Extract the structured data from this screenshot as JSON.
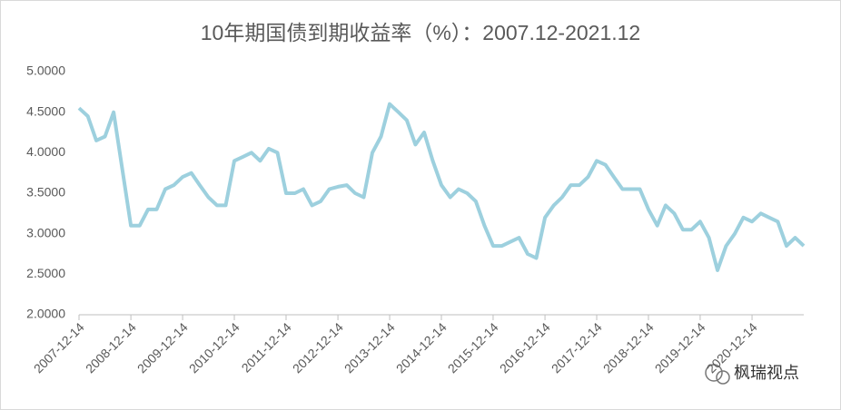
{
  "chart_data": {
    "type": "line",
    "title": "10年期国债到期收益率（%）：2007.12-2021.12",
    "watermark": "枫瑞视点",
    "x": [
      "2007-12-14",
      "2008-02-14",
      "2008-04-14",
      "2008-06-14",
      "2008-08-14",
      "2008-10-14",
      "2008-12-14",
      "2009-02-14",
      "2009-04-14",
      "2009-06-14",
      "2009-08-14",
      "2009-10-14",
      "2009-12-14",
      "2010-02-14",
      "2010-04-14",
      "2010-06-14",
      "2010-08-14",
      "2010-10-14",
      "2010-12-14",
      "2011-02-14",
      "2011-04-14",
      "2011-06-14",
      "2011-08-14",
      "2011-10-14",
      "2011-12-14",
      "2012-02-14",
      "2012-04-14",
      "2012-06-14",
      "2012-08-14",
      "2012-10-14",
      "2012-12-14",
      "2013-02-14",
      "2013-04-14",
      "2013-06-14",
      "2013-08-14",
      "2013-10-14",
      "2013-12-14",
      "2014-02-14",
      "2014-04-14",
      "2014-06-14",
      "2014-08-14",
      "2014-10-14",
      "2014-12-14",
      "2015-02-14",
      "2015-04-14",
      "2015-06-14",
      "2015-08-14",
      "2015-10-14",
      "2015-12-14",
      "2016-02-14",
      "2016-04-14",
      "2016-06-14",
      "2016-08-14",
      "2016-10-14",
      "2016-12-14",
      "2017-02-14",
      "2017-04-14",
      "2017-06-14",
      "2017-08-14",
      "2017-10-14",
      "2017-12-14",
      "2018-02-14",
      "2018-04-14",
      "2018-06-14",
      "2018-08-14",
      "2018-10-14",
      "2018-12-14",
      "2019-02-14",
      "2019-04-14",
      "2019-06-14",
      "2019-08-14",
      "2019-10-14",
      "2019-12-14",
      "2020-02-14",
      "2020-04-14",
      "2020-06-14",
      "2020-08-14",
      "2020-10-14",
      "2020-12-14",
      "2021-02-14",
      "2021-04-14",
      "2021-06-14",
      "2021-08-14",
      "2021-10-14",
      "2021-12-14"
    ],
    "series": [
      {
        "name": "10年期国债到期收益率",
        "color": "#9dd0de",
        "values": [
          4.55,
          4.45,
          4.15,
          4.2,
          4.5,
          3.8,
          3.1,
          3.1,
          3.3,
          3.3,
          3.55,
          3.6,
          3.7,
          3.75,
          3.6,
          3.45,
          3.35,
          3.35,
          3.9,
          3.95,
          4.0,
          3.9,
          4.05,
          4.0,
          3.5,
          3.5,
          3.55,
          3.35,
          3.4,
          3.55,
          3.58,
          3.6,
          3.5,
          3.45,
          4.0,
          4.2,
          4.6,
          4.5,
          4.4,
          4.1,
          4.25,
          3.9,
          3.6,
          3.45,
          3.55,
          3.5,
          3.4,
          3.1,
          2.85,
          2.85,
          2.9,
          2.95,
          2.75,
          2.7,
          3.2,
          3.35,
          3.45,
          3.6,
          3.6,
          3.7,
          3.9,
          3.85,
          3.7,
          3.55,
          3.55,
          3.55,
          3.3,
          3.1,
          3.35,
          3.25,
          3.05,
          3.05,
          3.15,
          2.95,
          2.55,
          2.85,
          3.0,
          3.2,
          3.15,
          3.25,
          3.2,
          3.15,
          2.85,
          2.95,
          2.85
        ]
      }
    ],
    "xlim": [
      "2007-12-14",
      "2021-12-14"
    ],
    "xticks": [
      "2007-12-14",
      "2008-12-14",
      "2009-12-14",
      "2010-12-14",
      "2011-12-14",
      "2012-12-14",
      "2013-12-14",
      "2014-12-14",
      "2015-12-14",
      "2016-12-14",
      "2017-12-14",
      "2018-12-14",
      "2019-12-14",
      "2020-12-14"
    ],
    "ylim": [
      2,
      5
    ],
    "yticks": [
      {
        "value": 2,
        "label": "2.0000"
      },
      {
        "value": 2.5,
        "label": "2.5000"
      },
      {
        "value": 3,
        "label": "3.0000"
      },
      {
        "value": 3.5,
        "label": "3.5000"
      },
      {
        "value": 4,
        "label": "4.0000"
      },
      {
        "value": 4.5,
        "label": "4.5000"
      },
      {
        "value": 5,
        "label": "5.0000"
      }
    ],
    "grid": false
  }
}
